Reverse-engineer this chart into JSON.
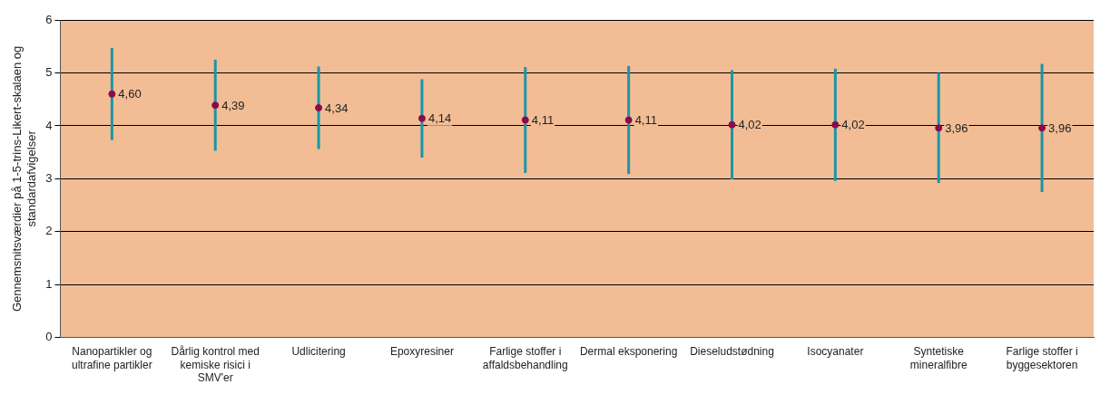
{
  "chart_data": {
    "type": "scatter",
    "ylabel": "Gennemsnitsværdier på 1-5-trins-Likert-skalaen og standardafvigelser",
    "categories": [
      "Nanopartikler og ultrafine partikler",
      "Dårlig kontrol med kemiske risici i SMV'er",
      "Udlicitering",
      "Epoxyresiner",
      "Farlige stoffer i affaldsbehandling",
      "Dermal eksponering",
      "Dieseludstødning",
      "Isocyanater",
      "Syntetiske mineralfibre",
      "Farlige stoffer i byggesektoren"
    ],
    "series": [
      {
        "color": "#8b0a4a",
        "values": [
          4.6,
          4.39,
          4.34,
          4.14,
          4.11,
          4.11,
          4.02,
          4.02,
          3.96,
          3.96
        ],
        "errors": [
          0.87,
          0.86,
          0.78,
          0.74,
          1.0,
          1.02,
          1.03,
          1.06,
          1.04,
          1.21
        ],
        "value_labels": [
          "4,60",
          "4,39",
          "4,34",
          "4,14",
          "4,11",
          "4,11",
          "4,02",
          "4,02",
          "3,96",
          "3,96"
        ]
      }
    ],
    "ylim": [
      0,
      6
    ],
    "yticks": [
      0,
      1,
      2,
      3,
      4,
      5,
      6
    ],
    "grid": "y",
    "legend": false,
    "marker": "circle"
  }
}
